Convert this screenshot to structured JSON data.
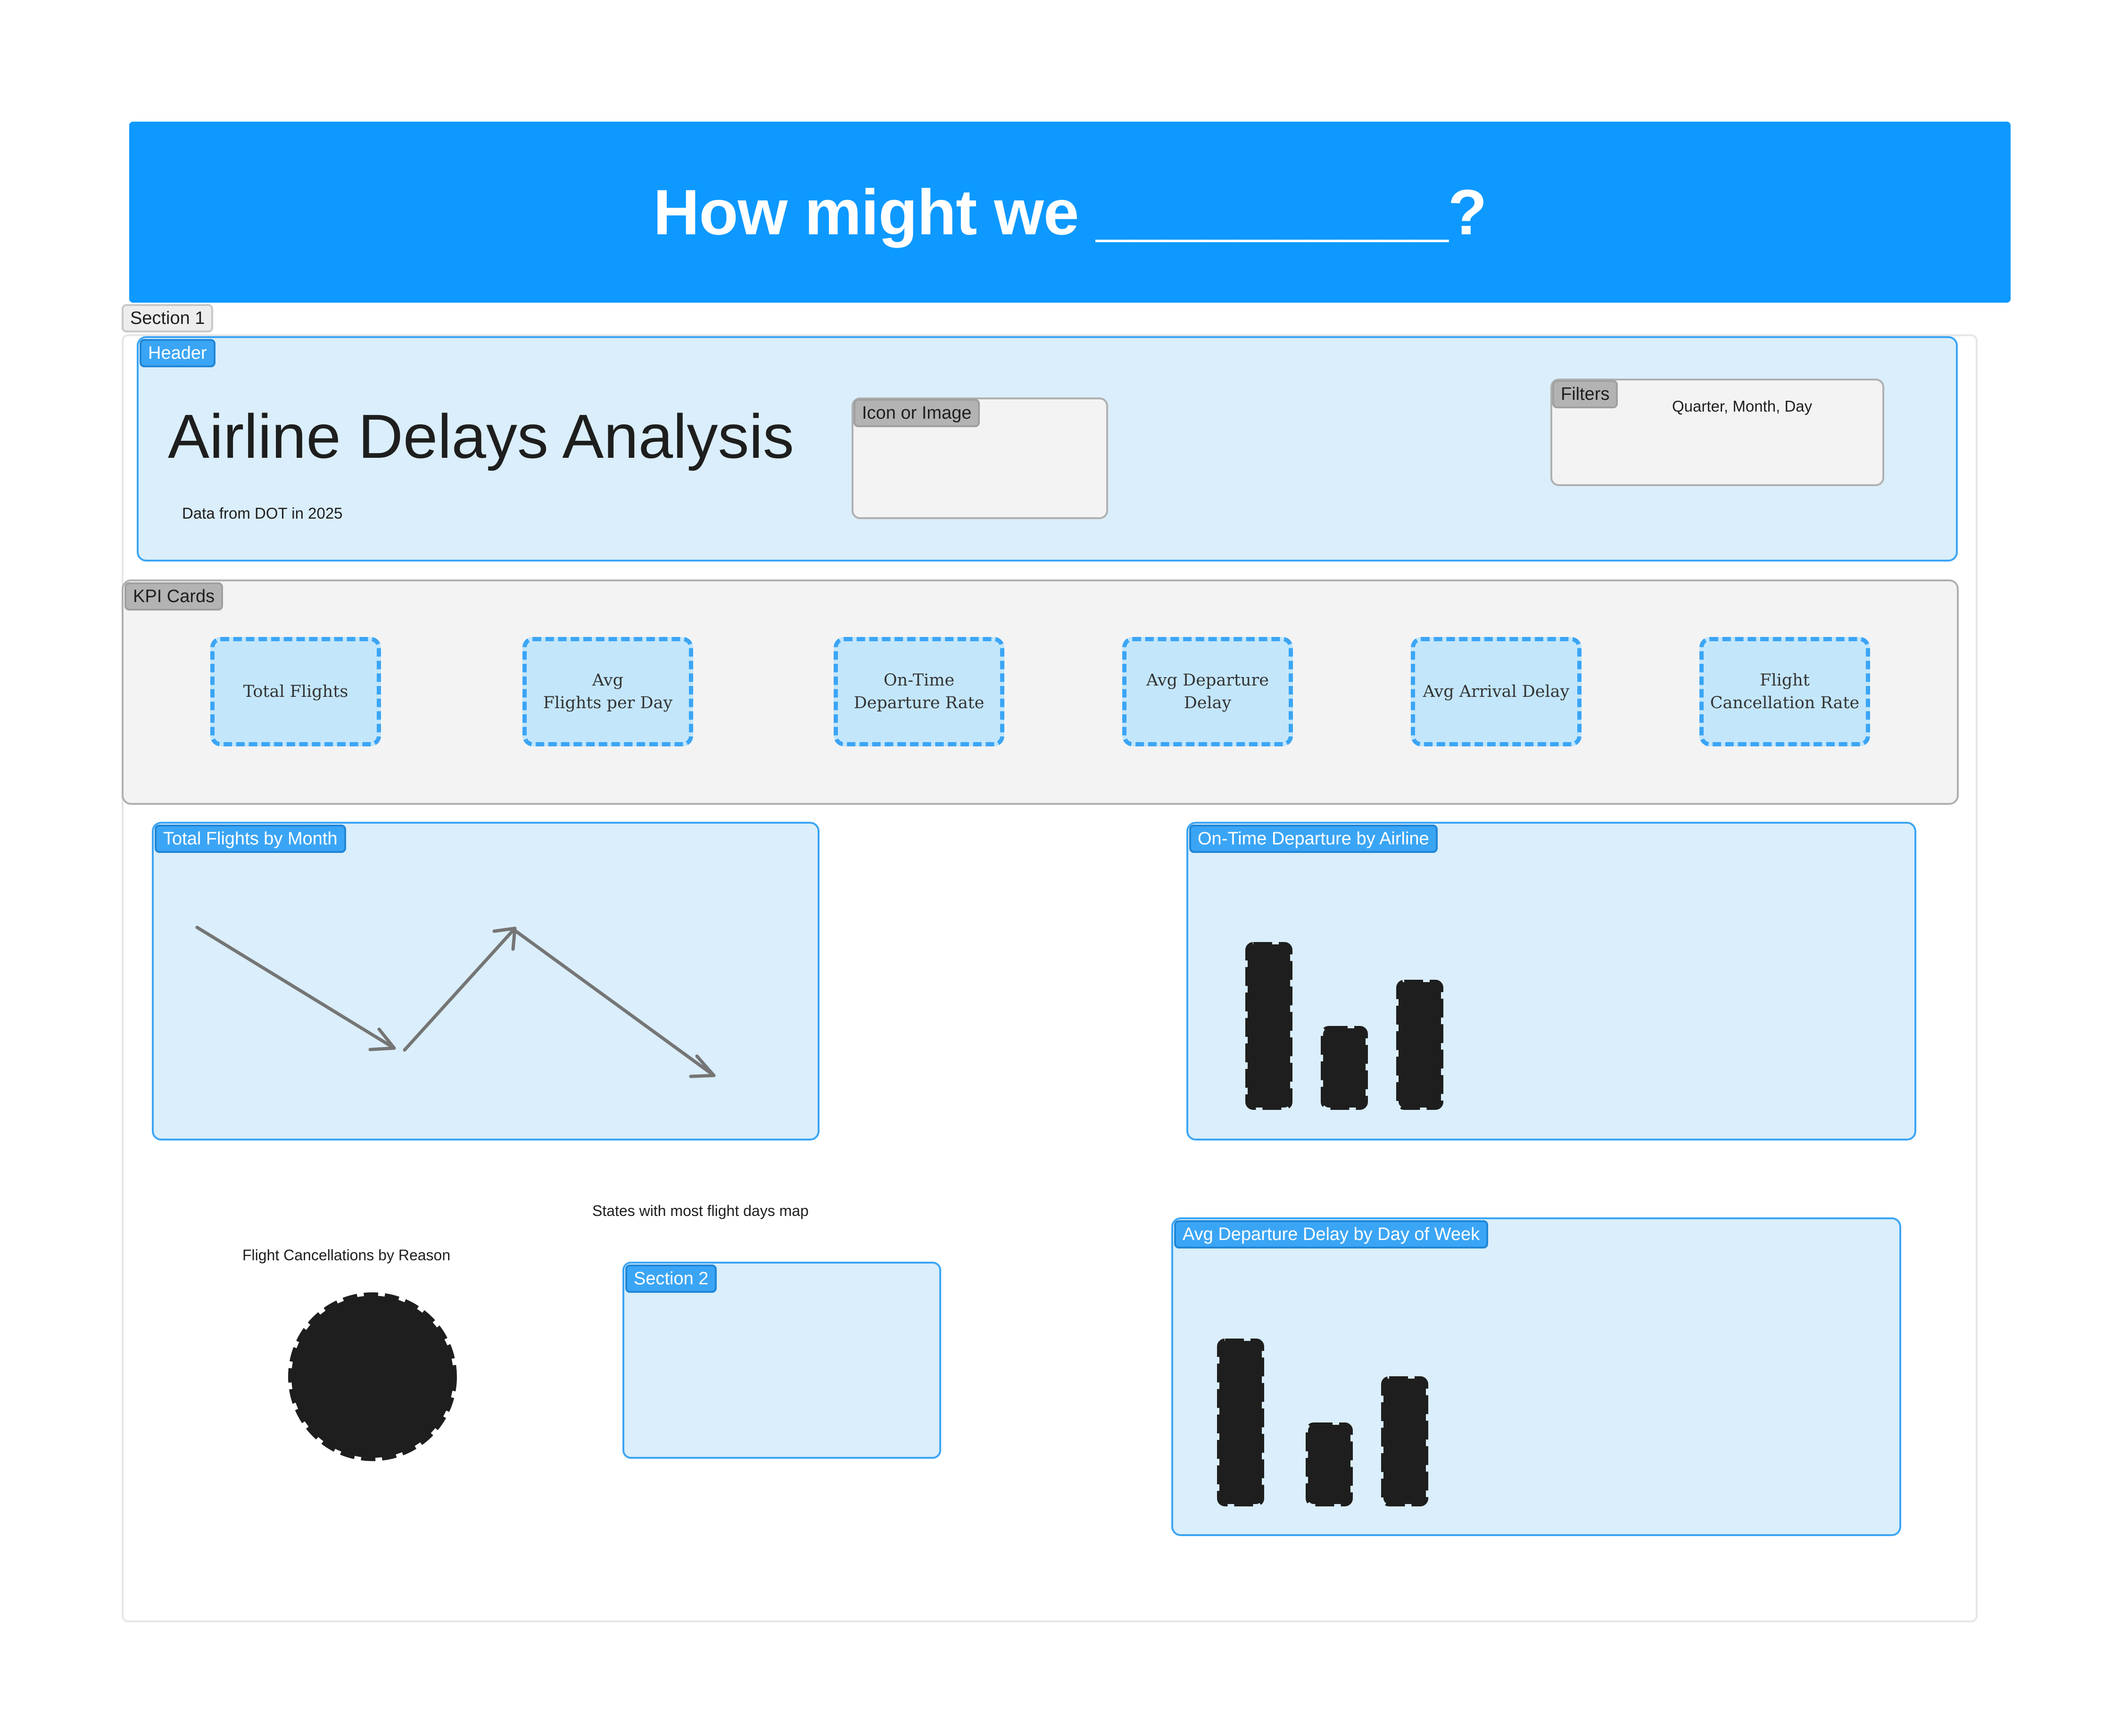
{
  "banner": {
    "title": "How might we __________?"
  },
  "section1": {
    "label": "Section 1"
  },
  "header": {
    "label": "Header",
    "title": "Airline Delays Analysis",
    "subtitle": "Data from DOT in 2025",
    "icon_box_label": "Icon or Image",
    "filters_label": "Filters",
    "filters_value": "Quarter, Month, Day"
  },
  "kpi": {
    "label": "KPI Cards",
    "cards": [
      {
        "text": "Total Flights"
      },
      {
        "text": "Avg\nFlights per Day"
      },
      {
        "text": "On-Time\nDeparture Rate"
      },
      {
        "text": "Avg Departure\nDelay"
      },
      {
        "text": "Avg Arrival Delay"
      },
      {
        "text": "Flight\nCancellation Rate"
      }
    ]
  },
  "charts": {
    "flights_by_month": {
      "label": "Total Flights by Month"
    },
    "ontime_by_airline": {
      "label": "On-Time Departure by Airline"
    },
    "cancellations_by_reason": {
      "label": "Flight Cancellations by Reason"
    },
    "states_map": {
      "label": "States with most flight days map"
    },
    "section2": {
      "label": "Section 2"
    },
    "delay_by_dow": {
      "label": "Avg Departure Delay by Day of Week"
    }
  },
  "colors": {
    "banner": "#0d99ff",
    "panel_fill": "#daeefb",
    "panel_border": "#3ba5f5",
    "kpi_fill": "#c3e6fb",
    "placeholder_shape": "#1e1e1e",
    "arrow": "#757575"
  }
}
